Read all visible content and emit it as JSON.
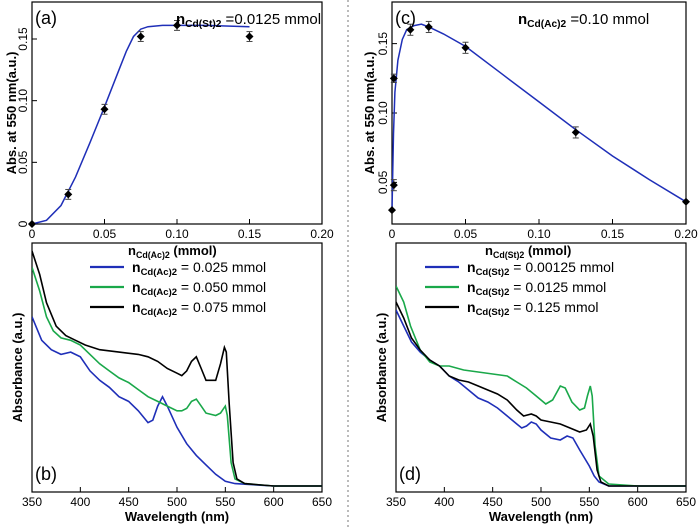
{
  "colors": {
    "blue": "#1f2fb8",
    "green": "#1aa84a",
    "black": "#000000",
    "fit": "#1f2fb8"
  },
  "chart_data": [
    {
      "panel": "(a)",
      "type": "scatter",
      "note": {
        "var": "n",
        "sub": "Cd(St)2",
        "text": " =0.0125 mmol"
      },
      "xlabel": {
        "var": "n",
        "sub": "Cd(Ac)2",
        "text": " (mmol)"
      },
      "ylabel": "Abs. at 550 nm(a.u.)",
      "xlim": [
        0,
        0.2
      ],
      "ylim": [
        0,
        0.18
      ],
      "xticks": [
        0,
        0.05,
        0.1,
        0.15,
        0.2
      ],
      "xtick_labels": [
        "0",
        "0.05",
        "0.10",
        "0.15",
        "0.20"
      ],
      "yticks": [
        0,
        0.05,
        0.1,
        0.15
      ],
      "ytick_labels": [
        "0",
        "0.05",
        "0.10",
        "0.15"
      ],
      "points": [
        {
          "x": 0,
          "y": 0,
          "err": 0
        },
        {
          "x": 0.025,
          "y": 0.024,
          "err": 0.004
        },
        {
          "x": 0.05,
          "y": 0.093,
          "err": 0.004
        },
        {
          "x": 0.075,
          "y": 0.152,
          "err": 0.004
        },
        {
          "x": 0.1,
          "y": 0.161,
          "err": 0.004
        },
        {
          "x": 0.15,
          "y": 0.152,
          "err": 0.004
        }
      ],
      "fit": [
        [
          0,
          0.0
        ],
        [
          0.01,
          0.003
        ],
        [
          0.02,
          0.015
        ],
        [
          0.03,
          0.038
        ],
        [
          0.04,
          0.066
        ],
        [
          0.05,
          0.095
        ],
        [
          0.06,
          0.125
        ],
        [
          0.065,
          0.14
        ],
        [
          0.07,
          0.152
        ],
        [
          0.075,
          0.158
        ],
        [
          0.08,
          0.16
        ],
        [
          0.09,
          0.161
        ],
        [
          0.1,
          0.161
        ],
        [
          0.12,
          0.161
        ],
        [
          0.15,
          0.16
        ]
      ]
    },
    {
      "panel": "(c)",
      "type": "scatter",
      "note": {
        "var": "n",
        "sub": "Cd(Ac)2",
        "text": " =0.10 mmol"
      },
      "xlabel": {
        "var": "n",
        "sub": "Cd(St)2",
        "text": " (mmol)"
      },
      "ylabel": "Abs. at 550 nm(a.u.)",
      "xlim": [
        0,
        0.2
      ],
      "ylim": [
        0.02,
        0.18
      ],
      "xticks": [
        0,
        0.05,
        0.1,
        0.15,
        0.2
      ],
      "xtick_labels": [
        "0",
        "0.05",
        "0.10",
        "0.15",
        "0.20"
      ],
      "yticks": [
        0.05,
        0.1,
        0.15
      ],
      "ytick_labels": [
        "0.05",
        "0.10",
        "0.15"
      ],
      "points": [
        {
          "x": 0,
          "y": 0.03,
          "err": 0
        },
        {
          "x": 0.00125,
          "y": 0.048,
          "err": 0.004
        },
        {
          "x": 0.00125,
          "y": 0.125,
          "err": 0.003
        },
        {
          "x": 0.0125,
          "y": 0.16,
          "err": 0.004
        },
        {
          "x": 0.025,
          "y": 0.162,
          "err": 0.004
        },
        {
          "x": 0.05,
          "y": 0.147,
          "err": 0.004
        },
        {
          "x": 0.125,
          "y": 0.086,
          "err": 0.004
        },
        {
          "x": 0.2,
          "y": 0.036,
          "err": 0
        }
      ],
      "fit": [
        [
          0,
          0.03
        ],
        [
          0.001,
          0.085
        ],
        [
          0.002,
          0.115
        ],
        [
          0.004,
          0.138
        ],
        [
          0.007,
          0.153
        ],
        [
          0.01,
          0.16
        ],
        [
          0.015,
          0.163
        ],
        [
          0.02,
          0.164
        ],
        [
          0.025,
          0.162
        ],
        [
          0.035,
          0.157
        ],
        [
          0.05,
          0.148
        ],
        [
          0.075,
          0.128
        ],
        [
          0.1,
          0.108
        ],
        [
          0.125,
          0.088
        ],
        [
          0.15,
          0.069
        ],
        [
          0.175,
          0.052
        ],
        [
          0.2,
          0.036
        ]
      ]
    },
    {
      "panel": "(b)",
      "type": "line",
      "xlabel": "Wavelength (nm)",
      "ylabel": "Absorbance (a.u.)",
      "xlim": [
        350,
        650
      ],
      "xticks": [
        350,
        400,
        450,
        500,
        550,
        600,
        650
      ],
      "xtick_labels": [
        "350",
        "400",
        "450",
        "500",
        "550",
        "600",
        "650"
      ],
      "legend": [
        {
          "var": "n",
          "sub": "Cd(Ac)2",
          "text": " = 0.025 mmol",
          "color": "blue"
        },
        {
          "var": "n",
          "sub": "Cd(Ac)2",
          "text": " = 0.050 mmol",
          "color": "green"
        },
        {
          "var": "n",
          "sub": "Cd(Ac)2",
          "text": " = 0.075 mmol",
          "color": "black"
        }
      ],
      "series": [
        {
          "color": "blue",
          "values": [
            [
              350,
              0.72
            ],
            [
              360,
              0.62
            ],
            [
              370,
              0.58
            ],
            [
              380,
              0.56
            ],
            [
              390,
              0.57
            ],
            [
              400,
              0.55
            ],
            [
              410,
              0.49
            ],
            [
              420,
              0.45
            ],
            [
              430,
              0.42
            ],
            [
              440,
              0.38
            ],
            [
              450,
              0.36
            ],
            [
              460,
              0.32
            ],
            [
              470,
              0.27
            ],
            [
              475,
              0.28
            ],
            [
              480,
              0.34
            ],
            [
              485,
              0.38
            ],
            [
              490,
              0.34
            ],
            [
              500,
              0.25
            ],
            [
              510,
              0.18
            ],
            [
              520,
              0.13
            ],
            [
              530,
              0.09
            ],
            [
              540,
              0.05
            ],
            [
              550,
              0.02
            ],
            [
              560,
              0.01
            ],
            [
              600,
              0.0
            ],
            [
              650,
              0.0
            ]
          ]
        },
        {
          "color": "green",
          "values": [
            [
              350,
              0.93
            ],
            [
              358,
              0.83
            ],
            [
              365,
              0.72
            ],
            [
              372,
              0.66
            ],
            [
              380,
              0.63
            ],
            [
              390,
              0.62
            ],
            [
              400,
              0.6
            ],
            [
              410,
              0.56
            ],
            [
              420,
              0.52
            ],
            [
              430,
              0.49
            ],
            [
              440,
              0.46
            ],
            [
              450,
              0.44
            ],
            [
              460,
              0.41
            ],
            [
              470,
              0.38
            ],
            [
              480,
              0.36
            ],
            [
              490,
              0.34
            ],
            [
              500,
              0.32
            ],
            [
              505,
              0.32
            ],
            [
              510,
              0.33
            ],
            [
              515,
              0.36
            ],
            [
              520,
              0.37
            ],
            [
              525,
              0.34
            ],
            [
              530,
              0.31
            ],
            [
              540,
              0.3
            ],
            [
              545,
              0.31
            ],
            [
              550,
              0.34
            ],
            [
              552,
              0.3
            ],
            [
              556,
              0.1
            ],
            [
              560,
              0.03
            ],
            [
              570,
              0.01
            ],
            [
              600,
              0.0
            ],
            [
              650,
              0.0
            ]
          ]
        },
        {
          "color": "black",
          "values": [
            [
              350,
              1.0
            ],
            [
              358,
              0.9
            ],
            [
              365,
              0.78
            ],
            [
              375,
              0.68
            ],
            [
              385,
              0.64
            ],
            [
              395,
              0.62
            ],
            [
              405,
              0.6
            ],
            [
              420,
              0.58
            ],
            [
              440,
              0.57
            ],
            [
              460,
              0.56
            ],
            [
              470,
              0.55
            ],
            [
              480,
              0.53
            ],
            [
              490,
              0.5
            ],
            [
              500,
              0.48
            ],
            [
              505,
              0.47
            ],
            [
              510,
              0.49
            ],
            [
              515,
              0.53
            ],
            [
              520,
              0.55
            ],
            [
              525,
              0.5
            ],
            [
              530,
              0.45
            ],
            [
              540,
              0.45
            ],
            [
              545,
              0.52
            ],
            [
              549,
              0.59
            ],
            [
              551,
              0.57
            ],
            [
              554,
              0.35
            ],
            [
              558,
              0.1
            ],
            [
              562,
              0.03
            ],
            [
              570,
              0.01
            ],
            [
              600,
              0.0
            ],
            [
              650,
              0.0
            ]
          ]
        }
      ]
    },
    {
      "panel": "(d)",
      "type": "line",
      "xlabel": "Wavelength (nm)",
      "ylabel": "Absorbance (a.u.)",
      "xlim": [
        350,
        650
      ],
      "xticks": [
        350,
        400,
        450,
        500,
        550,
        600,
        650
      ],
      "xtick_labels": [
        "350",
        "400",
        "450",
        "500",
        "550",
        "600",
        "650"
      ],
      "legend": [
        {
          "var": "n",
          "sub": "Cd(St)2",
          "text": " = 0.00125 mmol",
          "color": "blue"
        },
        {
          "var": "n",
          "sub": "Cd(St)2",
          "text": " = 0.0125   mmol",
          "color": "green"
        },
        {
          "var": "n",
          "sub": "Cd(St)2",
          "text": " = 0.125 mmol",
          "color": "black"
        }
      ],
      "series": [
        {
          "color": "blue",
          "values": [
            [
              350,
              0.88
            ],
            [
              358,
              0.8
            ],
            [
              366,
              0.72
            ],
            [
              375,
              0.67
            ],
            [
              385,
              0.63
            ],
            [
              395,
              0.6
            ],
            [
              405,
              0.55
            ],
            [
              415,
              0.52
            ],
            [
              425,
              0.48
            ],
            [
              435,
              0.44
            ],
            [
              445,
              0.42
            ],
            [
              455,
              0.39
            ],
            [
              465,
              0.35
            ],
            [
              475,
              0.31
            ],
            [
              480,
              0.29
            ],
            [
              485,
              0.3
            ],
            [
              490,
              0.32
            ],
            [
              495,
              0.31
            ],
            [
              500,
              0.28
            ],
            [
              510,
              0.24
            ],
            [
              520,
              0.23
            ],
            [
              527,
              0.25
            ],
            [
              533,
              0.24
            ],
            [
              540,
              0.18
            ],
            [
              550,
              0.1
            ],
            [
              555,
              0.05
            ],
            [
              560,
              0.02
            ],
            [
              570,
              0.0
            ],
            [
              600,
              0.0
            ],
            [
              650,
              0.0
            ]
          ]
        },
        {
          "color": "green",
          "values": [
            [
              350,
              1.0
            ],
            [
              358,
              0.92
            ],
            [
              365,
              0.8
            ],
            [
              375,
              0.68
            ],
            [
              385,
              0.62
            ],
            [
              395,
              0.6
            ],
            [
              405,
              0.6
            ],
            [
              420,
              0.58
            ],
            [
              435,
              0.57
            ],
            [
              450,
              0.56
            ],
            [
              465,
              0.55
            ],
            [
              475,
              0.52
            ],
            [
              485,
              0.49
            ],
            [
              495,
              0.45
            ],
            [
              505,
              0.41
            ],
            [
              512,
              0.43
            ],
            [
              520,
              0.5
            ],
            [
              525,
              0.49
            ],
            [
              532,
              0.42
            ],
            [
              540,
              0.38
            ],
            [
              545,
              0.39
            ],
            [
              548,
              0.45
            ],
            [
              551,
              0.5
            ],
            [
              553,
              0.45
            ],
            [
              556,
              0.2
            ],
            [
              560,
              0.05
            ],
            [
              570,
              0.01
            ],
            [
              600,
              0.0
            ],
            [
              650,
              0.0
            ]
          ]
        },
        {
          "color": "black",
          "values": [
            [
              350,
              0.92
            ],
            [
              358,
              0.84
            ],
            [
              366,
              0.74
            ],
            [
              375,
              0.68
            ],
            [
              385,
              0.63
            ],
            [
              395,
              0.6
            ],
            [
              405,
              0.55
            ],
            [
              415,
              0.53
            ],
            [
              425,
              0.52
            ],
            [
              435,
              0.5
            ],
            [
              445,
              0.48
            ],
            [
              455,
              0.46
            ],
            [
              465,
              0.43
            ],
            [
              475,
              0.38
            ],
            [
              482,
              0.35
            ],
            [
              490,
              0.36
            ],
            [
              495,
              0.35
            ],
            [
              500,
              0.33
            ],
            [
              510,
              0.32
            ],
            [
              520,
              0.31
            ],
            [
              530,
              0.29
            ],
            [
              540,
              0.27
            ],
            [
              547,
              0.28
            ],
            [
              551,
              0.31
            ],
            [
              554,
              0.25
            ],
            [
              558,
              0.08
            ],
            [
              562,
              0.02
            ],
            [
              570,
              0.0
            ],
            [
              600,
              0.0
            ],
            [
              650,
              0.0
            ]
          ]
        }
      ]
    }
  ]
}
